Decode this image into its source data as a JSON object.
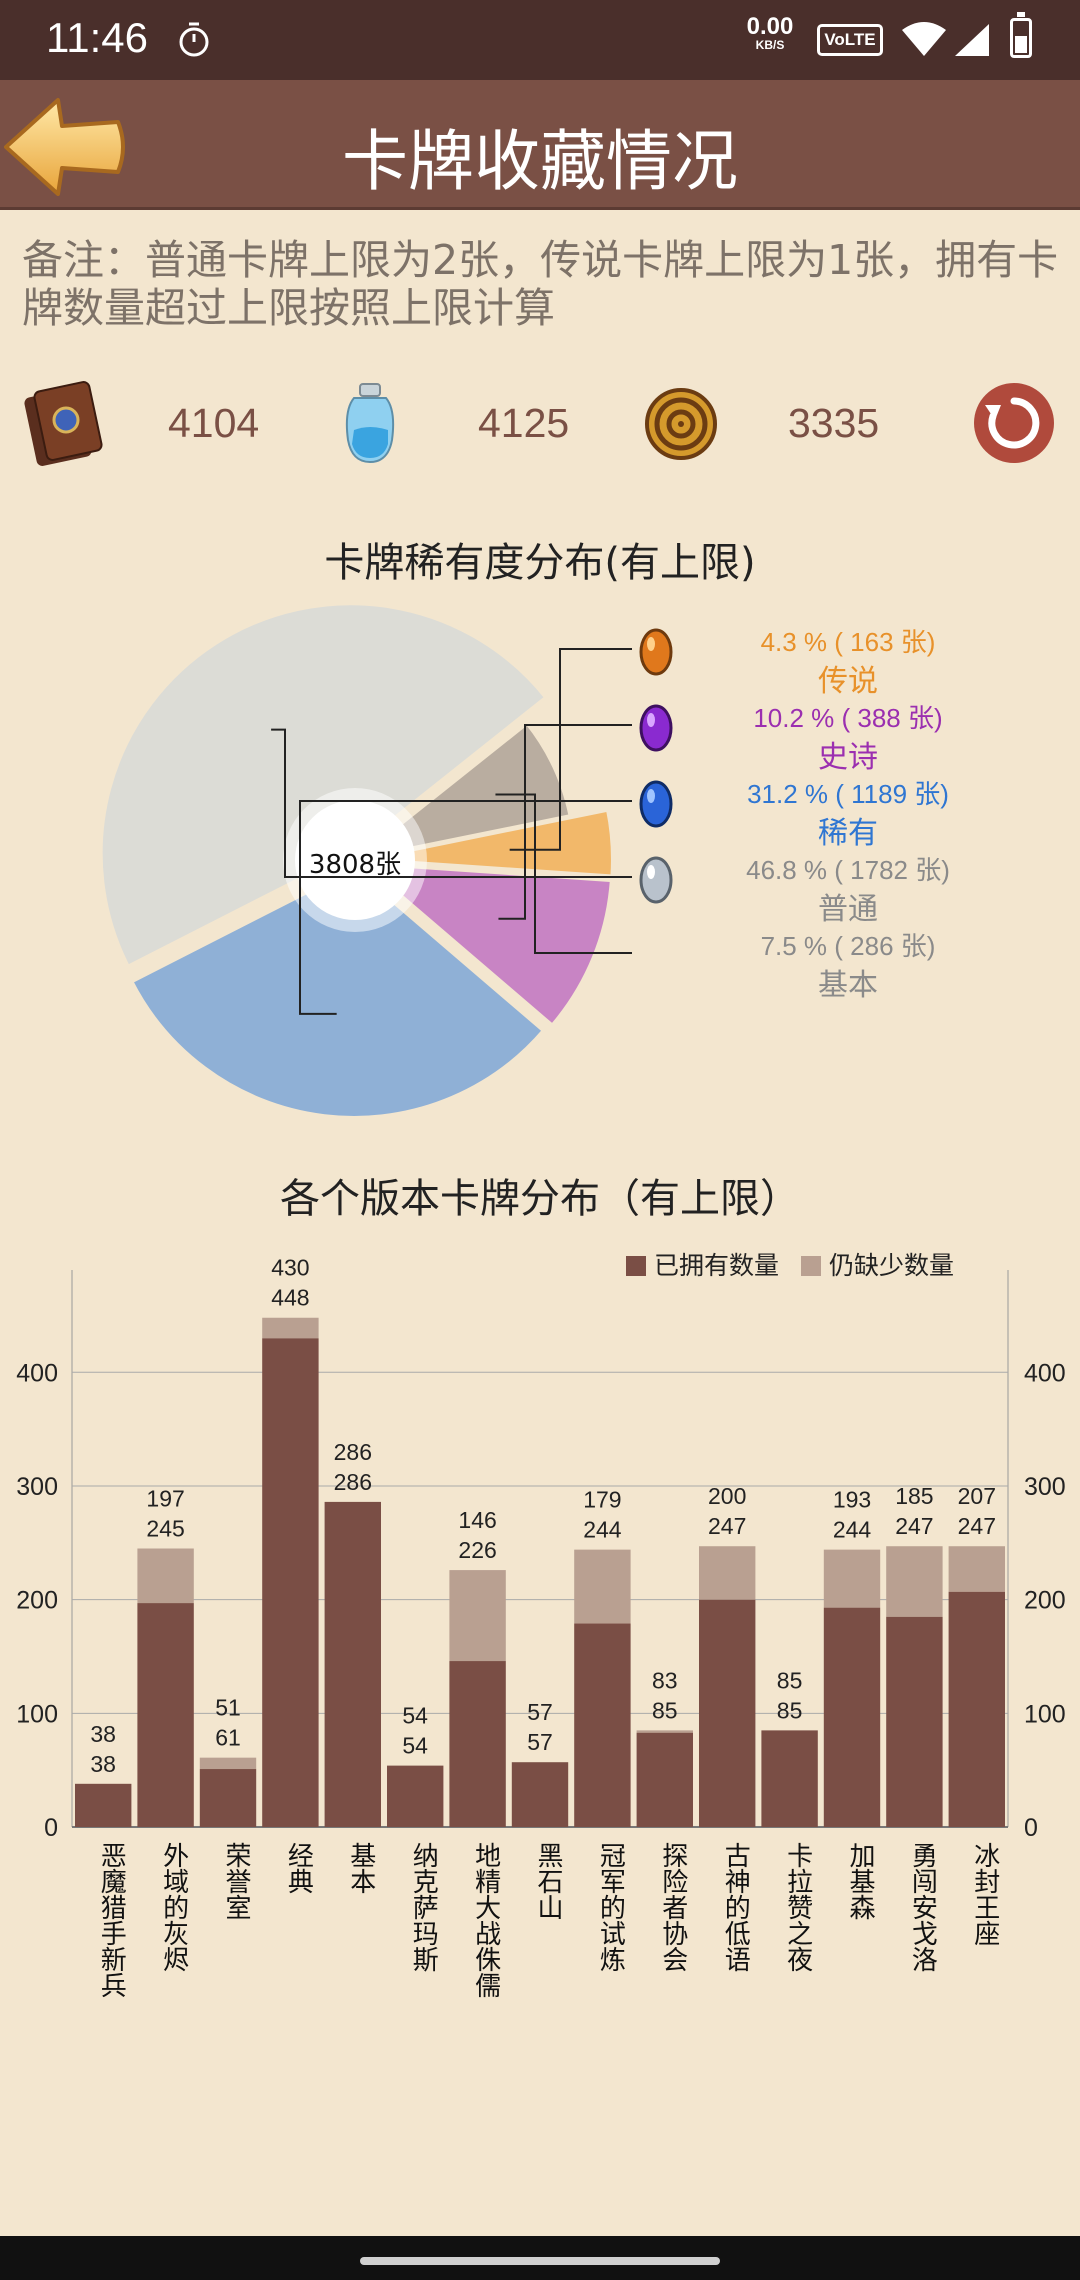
{
  "status_bar": {
    "time": "11:46",
    "net_speed": "0.00",
    "net_unit": "KB/S",
    "volte": "VoLTE",
    "icons": [
      "timer-icon",
      "wifi-icon",
      "signal-icon",
      "battery-icon"
    ]
  },
  "app_bar": {
    "title": "卡牌收藏情况",
    "back_icon": "arrow-left-icon"
  },
  "note": "备注：普通卡牌上限为2张，传说卡牌上限为1张，拥有卡牌数量超过上限按照上限计算",
  "stats": [
    {
      "icon": "card-pack-icon",
      "value": "4104"
    },
    {
      "icon": "arcane-dust-icon",
      "value": "4125"
    },
    {
      "icon": "gold-coin-icon",
      "value": "3335"
    }
  ],
  "colors": {
    "legendary": "#e8912a",
    "epic": "#9b2fb0",
    "rare": "#2f76d2",
    "common": "#8a8a8a",
    "basic": "#8a8a8a",
    "owned": "#7a4e45",
    "missing": "#b9a091",
    "accent": "#7a5045"
  },
  "pie_chart": {
    "title": "卡牌稀有度分布(有上限)",
    "center_label": "3808张",
    "legend": [
      {
        "key": "legendary",
        "pct": "4.3 % ( 163 张)",
        "name": "传说",
        "icon": "legendary-gem-icon"
      },
      {
        "key": "epic",
        "pct": "10.2 % ( 388 张)",
        "name": "史诗",
        "icon": "epic-gem-icon"
      },
      {
        "key": "rare",
        "pct": "31.2 % ( 1189 张)",
        "name": "稀有",
        "icon": "rare-gem-icon"
      },
      {
        "key": "common",
        "pct": "46.8 % ( 1782 张)",
        "name": "普通",
        "icon": "common-gem-icon"
      },
      {
        "key": "basic",
        "pct": "7.5 % ( 286 张)",
        "name": "基本",
        "icon": ""
      }
    ]
  },
  "chart_data": [
    {
      "type": "pie",
      "title": "卡牌稀有度分布(有上限)",
      "labels": [
        "传说",
        "史诗",
        "稀有",
        "普通",
        "基本"
      ],
      "values": [
        163,
        388,
        1189,
        1782,
        286
      ],
      "percentages": [
        4.3,
        10.2,
        31.2,
        46.8,
        7.5
      ],
      "total_label": "3808张"
    },
    {
      "type": "bar",
      "title": "各个版本卡牌分布（有上限）",
      "stacked": true,
      "categories": [
        "恶魔猎手新兵",
        "外域的灰烬",
        "荣誉室",
        "经典",
        "基本",
        "纳克萨玛斯",
        "地精大战侏儒",
        "黑石山",
        "冠军的试炼",
        "探险者协会",
        "古神的低语",
        "卡拉赞之夜",
        "加基森",
        "勇闯安戈洛",
        "冰封王座"
      ],
      "series": [
        {
          "name": "已拥有数量",
          "values": [
            38,
            197,
            51,
            430,
            286,
            54,
            146,
            57,
            179,
            83,
            200,
            85,
            193,
            185,
            207
          ]
        },
        {
          "name": "仍缺少数量",
          "values": [
            0,
            48,
            10,
            18,
            0,
            0,
            80,
            0,
            65,
            2,
            47,
            0,
            51,
            62,
            40
          ]
        }
      ],
      "totals": [
        38,
        245,
        61,
        448,
        286,
        54,
        226,
        57,
        244,
        85,
        247,
        85,
        244,
        247,
        247
      ],
      "yticks": [
        0,
        100,
        200,
        300,
        400
      ],
      "ylim": [
        0,
        490
      ],
      "legend_position": "top-right",
      "grid": true
    }
  ]
}
